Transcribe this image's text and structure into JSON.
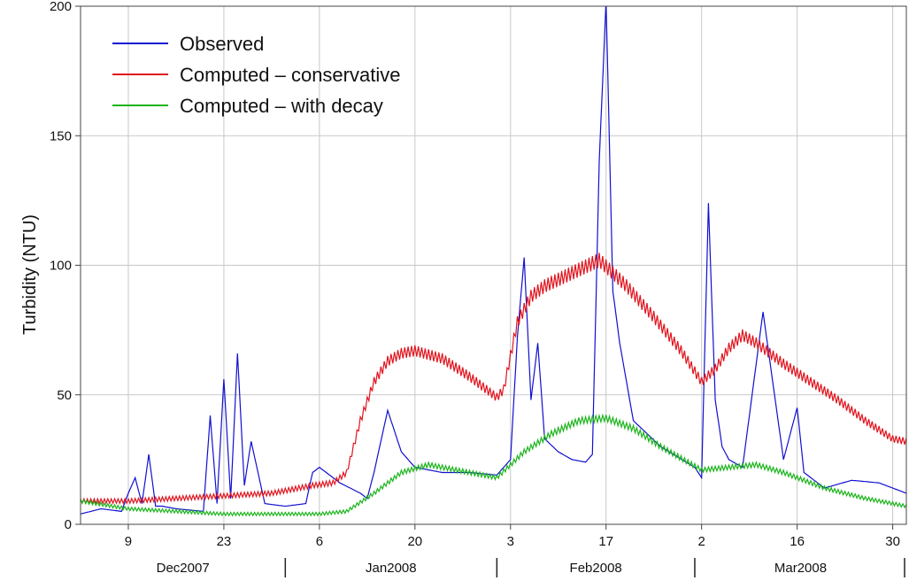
{
  "chart_data": {
    "type": "line",
    "title": "",
    "ylabel": "Turbidity (NTU)",
    "xlabel": "",
    "ylim": [
      0,
      200
    ],
    "xlim": [
      "2007-12-02",
      "2008-04-01"
    ],
    "grid": true,
    "legend": "top-left",
    "y_ticks": [
      0,
      50,
      100,
      150,
      200
    ],
    "x_ticks": [
      {
        "date": "2007-12-09",
        "label": "9"
      },
      {
        "date": "2007-12-23",
        "label": "23"
      },
      {
        "date": "2008-01-06",
        "label": "6"
      },
      {
        "date": "2008-01-20",
        "label": "20"
      },
      {
        "date": "2008-02-03",
        "label": "3"
      },
      {
        "date": "2008-02-17",
        "label": "17"
      },
      {
        "date": "2008-03-02",
        "label": "2"
      },
      {
        "date": "2008-03-16",
        "label": "16"
      },
      {
        "date": "2008-03-30",
        "label": "30"
      }
    ],
    "month_groups": [
      {
        "label": "Dec2007",
        "start": "2007-12-01",
        "end": "2008-01-01"
      },
      {
        "label": "Jan2008",
        "start": "2008-01-01",
        "end": "2008-02-01"
      },
      {
        "label": "Feb2008",
        "start": "2008-02-01",
        "end": "2008-03-01"
      },
      {
        "label": "Mar2008",
        "start": "2008-03-01",
        "end": "2008-04-01"
      }
    ],
    "series": [
      {
        "name": "Observed",
        "color": "#1010d0",
        "oscillation": 3,
        "x": [
          "2007-12-02",
          "2007-12-05",
          "2007-12-08",
          "2007-12-09",
          "2007-12-10",
          "2007-12-11",
          "2007-12-12",
          "2007-12-13",
          "2007-12-14",
          "2007-12-16",
          "2007-12-20",
          "2007-12-21",
          "2007-12-22",
          "2007-12-23",
          "2007-12-24",
          "2007-12-25",
          "2007-12-26",
          "2007-12-27",
          "2007-12-29",
          "2008-01-01",
          "2008-01-04",
          "2008-01-05",
          "2008-01-06",
          "2008-01-09",
          "2008-01-12",
          "2008-01-13",
          "2008-01-14",
          "2008-01-16",
          "2008-01-18",
          "2008-01-20",
          "2008-01-24",
          "2008-01-28",
          "2008-02-01",
          "2008-02-03",
          "2008-02-04",
          "2008-02-05",
          "2008-02-06",
          "2008-02-07",
          "2008-02-08",
          "2008-02-10",
          "2008-02-12",
          "2008-02-14",
          "2008-02-15",
          "2008-02-16",
          "2008-02-17",
          "2008-02-18",
          "2008-02-19",
          "2008-02-21",
          "2008-02-25",
          "2008-03-01",
          "2008-03-02",
          "2008-03-03",
          "2008-03-04",
          "2008-03-05",
          "2008-03-06",
          "2008-03-08",
          "2008-03-11",
          "2008-03-14",
          "2008-03-16",
          "2008-03-17",
          "2008-03-20",
          "2008-03-24",
          "2008-03-28",
          "2008-04-01"
        ],
        "y": [
          4,
          6,
          5,
          12,
          18,
          8,
          27,
          7,
          7,
          6,
          5,
          42,
          8,
          56,
          10,
          66,
          15,
          32,
          8,
          7,
          8,
          20,
          22,
          16,
          12,
          10,
          20,
          44,
          28,
          22,
          20,
          20,
          19,
          25,
          72,
          103,
          48,
          70,
          33,
          28,
          25,
          24,
          27,
          140,
          202,
          90,
          70,
          40,
          30,
          22,
          18,
          124,
          48,
          30,
          25,
          22,
          82,
          25,
          45,
          20,
          14,
          17,
          16,
          12
        ]
      },
      {
        "name": "Computed – conservative",
        "color": "#e0141e",
        "oscillation": 2,
        "x": [
          "2007-12-02",
          "2007-12-09",
          "2007-12-16",
          "2007-12-23",
          "2007-12-30",
          "2008-01-05",
          "2008-01-08",
          "2008-01-10",
          "2008-01-12",
          "2008-01-14",
          "2008-01-16",
          "2008-01-18",
          "2008-01-20",
          "2008-01-24",
          "2008-01-28",
          "2008-02-01",
          "2008-02-02",
          "2008-02-04",
          "2008-02-06",
          "2008-02-08",
          "2008-02-12",
          "2008-02-16",
          "2008-02-20",
          "2008-02-24",
          "2008-02-28",
          "2008-03-02",
          "2008-03-04",
          "2008-03-06",
          "2008-03-08",
          "2008-03-10",
          "2008-03-14",
          "2008-03-18",
          "2008-03-22",
          "2008-03-26",
          "2008-03-30",
          "2008-04-01"
        ],
        "y": [
          9,
          9,
          10,
          11,
          12,
          15,
          16,
          20,
          40,
          55,
          63,
          66,
          67,
          64,
          57,
          49,
          52,
          78,
          88,
          92,
          97,
          102,
          92,
          80,
          67,
          55,
          60,
          68,
          73,
          70,
          62,
          55,
          48,
          40,
          33,
          32
        ]
      },
      {
        "name": "Computed – with decay",
        "color": "#1ab41a",
        "oscillation": 1.5,
        "x": [
          "2007-12-02",
          "2007-12-09",
          "2007-12-16",
          "2007-12-23",
          "2007-12-30",
          "2008-01-06",
          "2008-01-10",
          "2008-01-14",
          "2008-01-18",
          "2008-01-22",
          "2008-01-26",
          "2008-02-01",
          "2008-02-05",
          "2008-02-09",
          "2008-02-13",
          "2008-02-17",
          "2008-02-21",
          "2008-02-25",
          "2008-03-02",
          "2008-03-06",
          "2008-03-10",
          "2008-03-14",
          "2008-03-20",
          "2008-03-26",
          "2008-04-01"
        ],
        "y": [
          9,
          6,
          5,
          4,
          4,
          4,
          5,
          12,
          20,
          23,
          21,
          18,
          28,
          35,
          40,
          41,
          37,
          30,
          21,
          22,
          23,
          20,
          14,
          10,
          7
        ]
      }
    ]
  }
}
